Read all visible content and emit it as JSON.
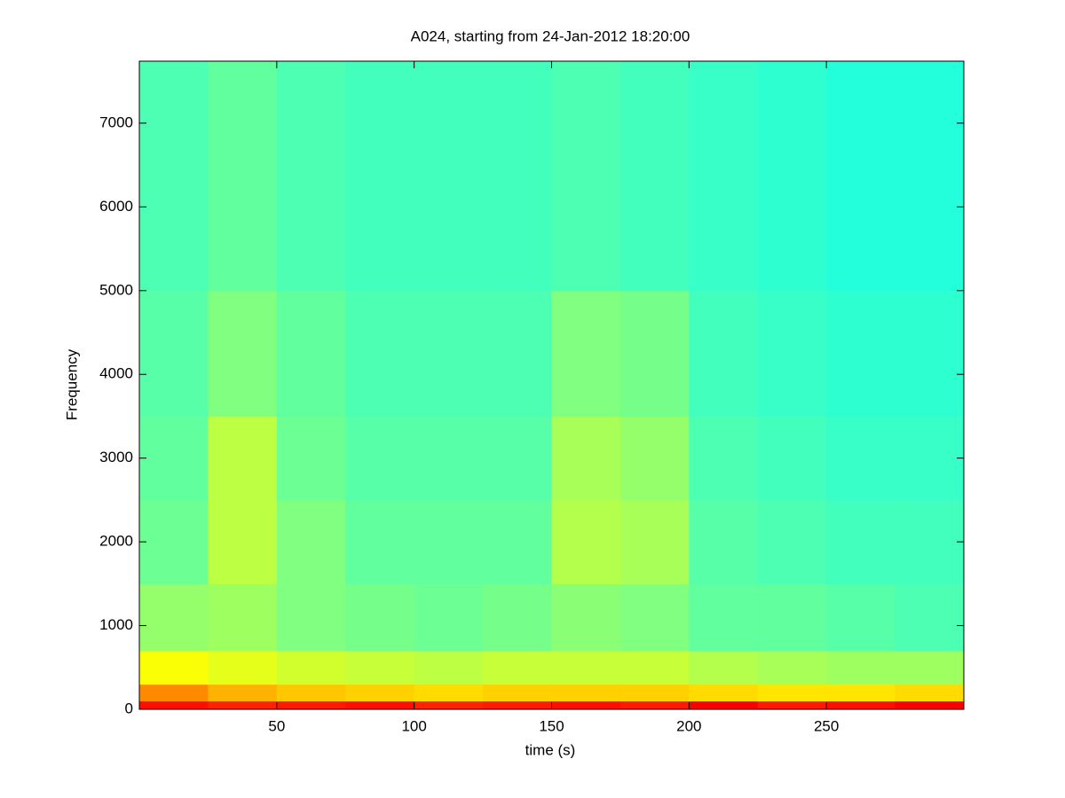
{
  "chart_data": {
    "type": "spectrogram",
    "title": "A024, starting from 24-Jan-2012 18:20:00",
    "x_label": "time (s)",
    "y_label": "Frequency",
    "x": [
      0,
      25,
      50,
      75,
      100,
      125,
      150,
      175,
      200,
      225,
      250,
      275,
      300
    ],
    "y": [
      0,
      100,
      300,
      700,
      1500,
      2500,
      3500,
      5000,
      7740
    ],
    "values": [
      [
        0.86,
        0.84,
        0.85,
        0.86,
        0.84,
        0.85,
        0.86,
        0.85,
        0.88,
        0.85,
        0.86,
        0.88
      ],
      [
        0.74,
        0.7,
        0.68,
        0.67,
        0.66,
        0.67,
        0.67,
        0.67,
        0.66,
        0.65,
        0.65,
        0.66
      ],
      [
        0.62,
        0.6,
        0.58,
        0.57,
        0.56,
        0.57,
        0.57,
        0.57,
        0.55,
        0.54,
        0.53,
        0.53
      ],
      [
        0.52,
        0.53,
        0.5,
        0.49,
        0.48,
        0.49,
        0.51,
        0.5,
        0.47,
        0.47,
        0.46,
        0.45
      ],
      [
        0.48,
        0.56,
        0.5,
        0.47,
        0.47,
        0.47,
        0.55,
        0.54,
        0.46,
        0.45,
        0.44,
        0.44
      ],
      [
        0.47,
        0.56,
        0.48,
        0.46,
        0.46,
        0.46,
        0.54,
        0.52,
        0.45,
        0.44,
        0.43,
        0.43
      ],
      [
        0.46,
        0.5,
        0.47,
        0.45,
        0.45,
        0.45,
        0.5,
        0.49,
        0.44,
        0.43,
        0.42,
        0.42
      ],
      [
        0.45,
        0.47,
        0.45,
        0.44,
        0.44,
        0.44,
        0.45,
        0.44,
        0.43,
        0.42,
        0.41,
        0.41
      ]
    ],
    "xlim": [
      0,
      300
    ],
    "ylim": [
      0,
      7740
    ],
    "xticks": [
      50,
      100,
      150,
      200,
      250
    ],
    "yticks": [
      0,
      1000,
      2000,
      3000,
      4000,
      5000,
      6000,
      7000
    ],
    "colormap": "jet"
  }
}
